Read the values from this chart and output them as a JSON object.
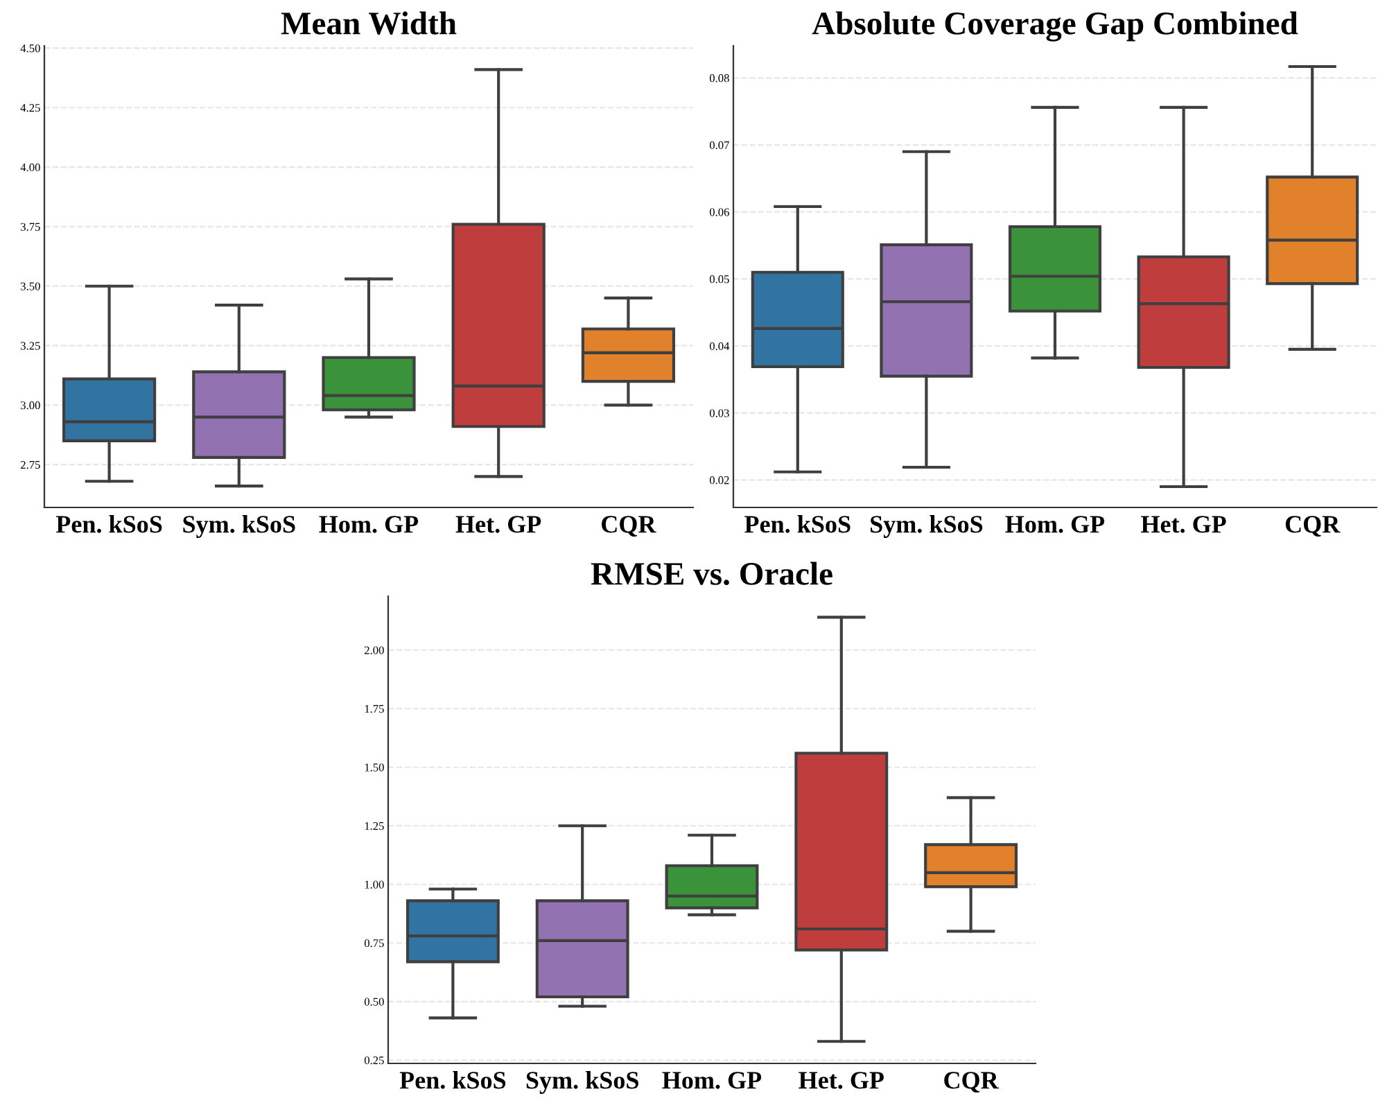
{
  "chart_data": [
    {
      "type": "box",
      "title": "Mean Width",
      "categories": [
        "Pen. kSoS",
        "Sym. kSoS",
        "Hom. GP",
        "Het. GP",
        "CQR"
      ],
      "colors": [
        "#3274a1",
        "#9372b2",
        "#3a923a",
        "#c03d3e",
        "#e1812c"
      ],
      "boxes": [
        {
          "low": 2.68,
          "q1": 2.85,
          "median": 2.93,
          "q3": 3.11,
          "high": 3.5
        },
        {
          "low": 2.66,
          "q1": 2.78,
          "median": 2.95,
          "q3": 3.14,
          "high": 3.42
        },
        {
          "low": 2.95,
          "q1": 2.98,
          "median": 3.04,
          "q3": 3.2,
          "high": 3.53
        },
        {
          "low": 2.7,
          "q1": 2.91,
          "median": 3.08,
          "q3": 3.76,
          "high": 4.41
        },
        {
          "low": 3.0,
          "q1": 3.1,
          "median": 3.22,
          "q3": 3.32,
          "high": 3.45
        }
      ],
      "ylim": [
        2.57,
        4.51
      ],
      "yticks": [
        {
          "value": 2.75,
          "label": "2.75"
        },
        {
          "value": 3.0,
          "label": "3.00"
        },
        {
          "value": 3.25,
          "label": "3.25"
        },
        {
          "value": 3.5,
          "label": "3.50"
        },
        {
          "value": 3.75,
          "label": "3.75"
        },
        {
          "value": 4.0,
          "label": "4.00"
        },
        {
          "value": 4.25,
          "label": "4.25"
        },
        {
          "value": 4.5,
          "label": "4.50"
        }
      ],
      "grid": "y"
    },
    {
      "type": "box",
      "title": "Absolute Coverage Gap Combined",
      "categories": [
        "Pen. kSoS",
        "Sym. kSoS",
        "Hom. GP",
        "Het. GP",
        "CQR"
      ],
      "colors": [
        "#3274a1",
        "#9372b2",
        "#3a923a",
        "#c03d3e",
        "#e1812c"
      ],
      "boxes": [
        {
          "low": 0.0212,
          "q1": 0.0369,
          "median": 0.0426,
          "q3": 0.051,
          "high": 0.0608
        },
        {
          "low": 0.0219,
          "q1": 0.0355,
          "median": 0.0466,
          "q3": 0.0551,
          "high": 0.069
        },
        {
          "low": 0.0382,
          "q1": 0.0452,
          "median": 0.0504,
          "q3": 0.0578,
          "high": 0.0756
        },
        {
          "low": 0.019,
          "q1": 0.0368,
          "median": 0.0463,
          "q3": 0.0533,
          "high": 0.0756
        },
        {
          "low": 0.0395,
          "q1": 0.0493,
          "median": 0.0558,
          "q3": 0.0652,
          "high": 0.0817
        }
      ],
      "ylim": [
        0.0159,
        0.0848
      ],
      "yticks": [
        0.02,
        0.03,
        0.04,
        0.05,
        0.06,
        0.07,
        0.08
      ],
      "grid": "y"
    },
    {
      "type": "box",
      "title": "RMSE vs. Oracle",
      "categories": [
        "Pen. kSoS",
        "Sym. kSoS",
        "Hom. GP",
        "Het. GP",
        "CQR"
      ],
      "colors": [
        "#3274a1",
        "#9372b2",
        "#3a923a",
        "#c03d3e",
        "#e1812c"
      ],
      "boxes": [
        {
          "low": 0.43,
          "q1": 0.67,
          "median": 0.78,
          "q3": 0.93,
          "high": 0.98
        },
        {
          "low": 0.48,
          "q1": 0.52,
          "median": 0.76,
          "q3": 0.93,
          "high": 1.25
        },
        {
          "low": 0.87,
          "q1": 0.9,
          "median": 0.95,
          "q3": 1.08,
          "high": 1.21
        },
        {
          "low": 0.33,
          "q1": 0.72,
          "median": 0.81,
          "q3": 1.56,
          "high": 2.14
        },
        {
          "low": 0.8,
          "q1": 0.99,
          "median": 1.05,
          "q3": 1.17,
          "high": 1.37
        }
      ],
      "ylim": [
        0.236,
        2.23
      ],
      "yticks": [
        {
          "value": 0.25,
          "label": "0.25"
        },
        {
          "value": 0.5,
          "label": "0.50"
        },
        {
          "value": 0.75,
          "label": "0.75"
        },
        {
          "value": 1.0,
          "label": "1.00"
        },
        {
          "value": 1.25,
          "label": "1.25"
        },
        {
          "value": 1.5,
          "label": "1.50"
        },
        {
          "value": 1.75,
          "label": "1.75"
        },
        {
          "value": 2.0,
          "label": "2.00"
        }
      ],
      "grid": "y"
    }
  ]
}
